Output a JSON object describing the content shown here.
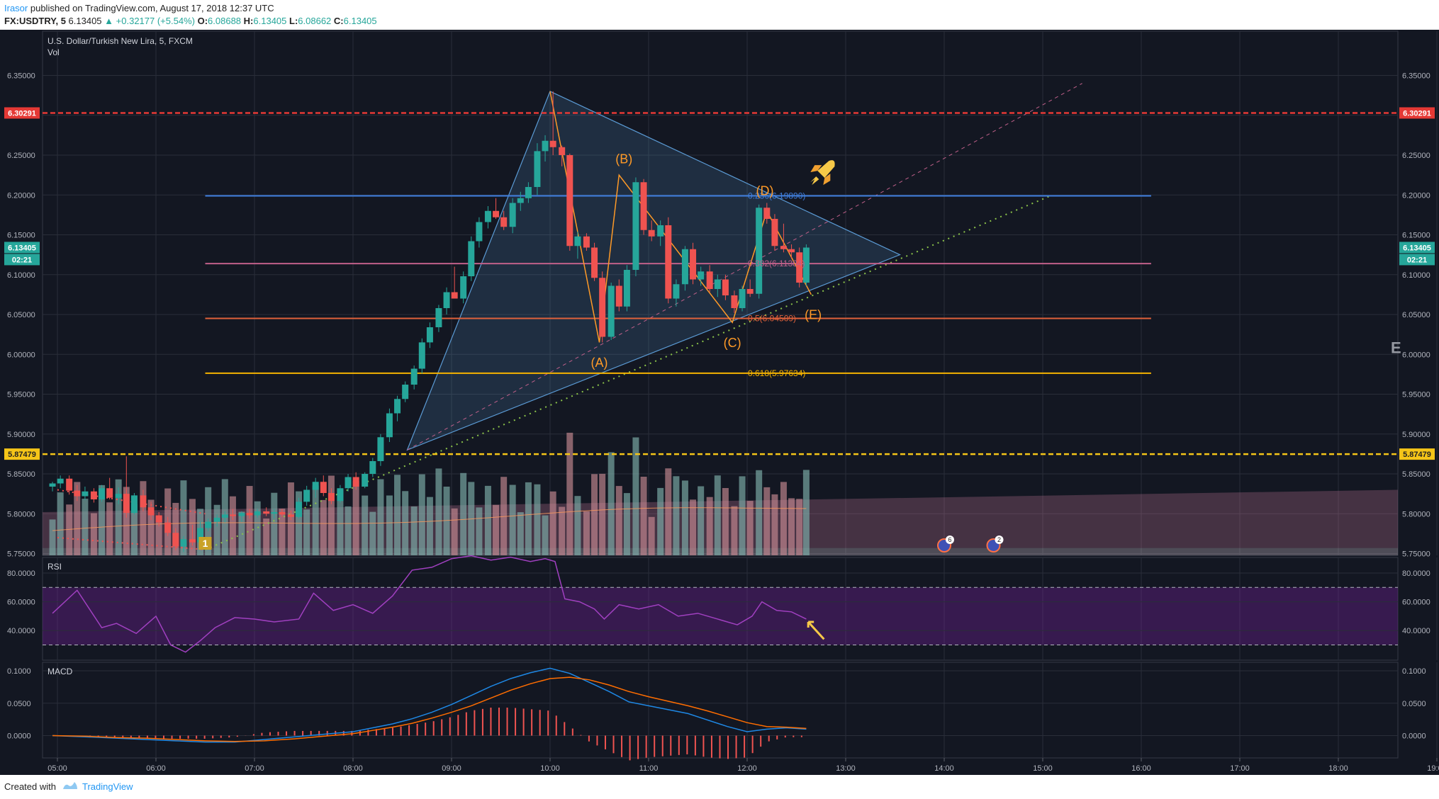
{
  "header": {
    "author": "Irasor",
    "published": "published on TradingView.com, August 17, 2018 12:37 UTC",
    "symbol_line": "FX:USDTRY, 5",
    "last": "6.13405",
    "change": "▲ +0.32177 (+5.54%)",
    "o_label": "O:",
    "o_val": "6.08688",
    "h_label": "H:",
    "h_val": "6.13405",
    "l_label": "L:",
    "l_val": "6.08662",
    "c_label": "C:",
    "c_val": "6.13405"
  },
  "footer": {
    "created_with": "Created with",
    "brand": "TradingView"
  },
  "colors": {
    "bg": "#131722",
    "up": "#26a69a",
    "down": "#ef5350",
    "grid": "#2a2e39",
    "red_line": "#e53935",
    "yellow_line": "#f5c518",
    "triangle": "#5b9bd5",
    "fib_236": "#3f7fdf",
    "fib_382": "#c0608a",
    "fib_5": "#e0613b",
    "fib_618": "#f5b300",
    "wave": "#ff9a27",
    "rsi": "#a040c0",
    "macd": "#1e88e5",
    "signal": "#ff6d00",
    "hist": "#ef5350"
  },
  "chart_data": [
    {
      "type": "candlestick",
      "title": "U.S. Dollar/Turkish New Lira, 5, FXCM",
      "subtitle": "Vol",
      "x_time_labels": [
        "05:00",
        "06:00",
        "07:00",
        "08:00",
        "09:00",
        "10:00",
        "11:00",
        "12:00",
        "13:00",
        "14:00",
        "15:00",
        "16:00",
        "17:00",
        "18:00",
        "19:00"
      ],
      "y_ticks": [
        "6.35000",
        "6.30000",
        "6.25000",
        "6.20000",
        "6.15000",
        "6.10000",
        "6.05000",
        "6.00000",
        "5.95000",
        "5.90000",
        "5.85000",
        "5.80000",
        "5.75000"
      ],
      "ylim": [
        5.72,
        6.37
      ],
      "price_tags": {
        "resistance": "6.30291",
        "last": "6.13405",
        "countdown": "02:21",
        "support": "5.87479"
      },
      "fib_labels": [
        "0.236(6.19890)",
        "0.382(6.11384)",
        "0.5(6.04509)",
        "0.618(5.97634)"
      ],
      "wave_labels": [
        "(A)",
        "(B)",
        "(C)",
        "(D)",
        "(E)"
      ],
      "wave_points": [
        [
          10.0,
          6.33
        ],
        [
          10.5,
          6.015
        ],
        [
          10.7,
          6.225
        ],
        [
          11.85,
          6.04
        ],
        [
          12.2,
          6.18
        ],
        [
          12.65,
          6.075
        ]
      ],
      "markers": {
        "event_badge": "1",
        "flag_1_count": "6",
        "flag_2_count": "2",
        "edge_label": "E"
      },
      "candles": [
        {
          "t": 4.95,
          "o": 5.834,
          "h": 5.84,
          "l": 5.828,
          "c": 5.838
        },
        {
          "t": 5.03,
          "o": 5.838,
          "h": 5.848,
          "l": 5.832,
          "c": 5.844
        },
        {
          "t": 5.12,
          "o": 5.844,
          "h": 5.848,
          "l": 5.824,
          "c": 5.829
        },
        {
          "t": 5.2,
          "o": 5.829,
          "h": 5.836,
          "l": 5.816,
          "c": 5.822
        },
        {
          "t": 5.28,
          "o": 5.822,
          "h": 5.834,
          "l": 5.817,
          "c": 5.828
        },
        {
          "t": 5.37,
          "o": 5.828,
          "h": 5.832,
          "l": 5.814,
          "c": 5.818
        },
        {
          "t": 5.45,
          "o": 5.818,
          "h": 5.836,
          "l": 5.815,
          "c": 5.832
        },
        {
          "t": 5.53,
          "o": 5.832,
          "h": 5.845,
          "l": 5.818,
          "c": 5.82
        },
        {
          "t": 5.62,
          "o": 5.82,
          "h": 5.833,
          "l": 5.812,
          "c": 5.825
        },
        {
          "t": 5.7,
          "o": 5.825,
          "h": 5.872,
          "l": 5.795,
          "c": 5.801
        },
        {
          "t": 5.78,
          "o": 5.801,
          "h": 5.826,
          "l": 5.799,
          "c": 5.823
        },
        {
          "t": 5.87,
          "o": 5.823,
          "h": 5.83,
          "l": 5.803,
          "c": 5.808
        },
        {
          "t": 5.95,
          "o": 5.808,
          "h": 5.815,
          "l": 5.792,
          "c": 5.798
        },
        {
          "t": 6.03,
          "o": 5.798,
          "h": 5.802,
          "l": 5.784,
          "c": 5.789
        },
        {
          "t": 6.12,
          "o": 5.789,
          "h": 5.796,
          "l": 5.772,
          "c": 5.776
        },
        {
          "t": 6.2,
          "o": 5.776,
          "h": 5.782,
          "l": 5.754,
          "c": 5.759
        },
        {
          "t": 6.28,
          "o": 5.759,
          "h": 5.772,
          "l": 5.752,
          "c": 5.768
        },
        {
          "t": 6.37,
          "o": 5.768,
          "h": 5.786,
          "l": 5.76,
          "c": 5.764
        },
        {
          "t": 6.45,
          "o": 5.764,
          "h": 5.79,
          "l": 5.756,
          "c": 5.782
        },
        {
          "t": 6.53,
          "o": 5.782,
          "h": 5.794,
          "l": 5.778,
          "c": 5.79
        },
        {
          "t": 6.62,
          "o": 5.79,
          "h": 5.799,
          "l": 5.784,
          "c": 5.795
        },
        {
          "t": 6.7,
          "o": 5.795,
          "h": 5.803,
          "l": 5.789,
          "c": 5.799
        },
        {
          "t": 6.78,
          "o": 5.799,
          "h": 5.806,
          "l": 5.792,
          "c": 5.797
        },
        {
          "t": 6.87,
          "o": 5.797,
          "h": 5.803,
          "l": 5.79,
          "c": 5.801
        },
        {
          "t": 6.95,
          "o": 5.801,
          "h": 5.806,
          "l": 5.794,
          "c": 5.798
        },
        {
          "t": 7.03,
          "o": 5.798,
          "h": 5.806,
          "l": 5.795,
          "c": 5.803
        },
        {
          "t": 7.12,
          "o": 5.803,
          "h": 5.808,
          "l": 5.797,
          "c": 5.8
        },
        {
          "t": 7.2,
          "o": 5.8,
          "h": 5.806,
          "l": 5.794,
          "c": 5.802
        },
        {
          "t": 7.28,
          "o": 5.802,
          "h": 5.806,
          "l": 5.796,
          "c": 5.799
        },
        {
          "t": 7.37,
          "o": 5.799,
          "h": 5.804,
          "l": 5.792,
          "c": 5.796
        },
        {
          "t": 7.45,
          "o": 5.796,
          "h": 5.82,
          "l": 5.794,
          "c": 5.815
        },
        {
          "t": 7.53,
          "o": 5.815,
          "h": 5.835,
          "l": 5.81,
          "c": 5.83
        },
        {
          "t": 7.62,
          "o": 5.83,
          "h": 5.845,
          "l": 5.82,
          "c": 5.84
        },
        {
          "t": 7.7,
          "o": 5.84,
          "h": 5.848,
          "l": 5.822,
          "c": 5.826
        },
        {
          "t": 7.78,
          "o": 5.826,
          "h": 5.832,
          "l": 5.812,
          "c": 5.816
        },
        {
          "t": 7.87,
          "o": 5.816,
          "h": 5.836,
          "l": 5.814,
          "c": 5.832
        },
        {
          "t": 7.95,
          "o": 5.832,
          "h": 5.85,
          "l": 5.828,
          "c": 5.846
        },
        {
          "t": 8.03,
          "o": 5.846,
          "h": 5.852,
          "l": 5.83,
          "c": 5.834
        },
        {
          "t": 8.12,
          "o": 5.834,
          "h": 5.852,
          "l": 5.832,
          "c": 5.85
        },
        {
          "t": 8.2,
          "o": 5.85,
          "h": 5.87,
          "l": 5.846,
          "c": 5.866
        },
        {
          "t": 8.28,
          "o": 5.866,
          "h": 5.9,
          "l": 5.86,
          "c": 5.896
        },
        {
          "t": 8.37,
          "o": 5.896,
          "h": 5.932,
          "l": 5.89,
          "c": 5.926
        },
        {
          "t": 8.45,
          "o": 5.926,
          "h": 5.948,
          "l": 5.916,
          "c": 5.944
        },
        {
          "t": 8.53,
          "o": 5.944,
          "h": 5.966,
          "l": 5.94,
          "c": 5.962
        },
        {
          "t": 8.62,
          "o": 5.962,
          "h": 5.986,
          "l": 5.956,
          "c": 5.982
        },
        {
          "t": 8.7,
          "o": 5.982,
          "h": 6.02,
          "l": 5.976,
          "c": 6.015
        },
        {
          "t": 8.78,
          "o": 6.015,
          "h": 6.04,
          "l": 6.008,
          "c": 6.034
        },
        {
          "t": 8.87,
          "o": 6.034,
          "h": 6.062,
          "l": 6.028,
          "c": 6.058
        },
        {
          "t": 8.95,
          "o": 6.058,
          "h": 6.084,
          "l": 6.05,
          "c": 6.078
        },
        {
          "t": 9.03,
          "o": 6.078,
          "h": 6.11,
          "l": 6.07,
          "c": 6.07
        },
        {
          "t": 9.12,
          "o": 6.07,
          "h": 6.104,
          "l": 6.064,
          "c": 6.098
        },
        {
          "t": 9.2,
          "o": 6.098,
          "h": 6.148,
          "l": 6.092,
          "c": 6.142
        },
        {
          "t": 9.28,
          "o": 6.142,
          "h": 6.172,
          "l": 6.134,
          "c": 6.166
        },
        {
          "t": 9.37,
          "o": 6.166,
          "h": 6.186,
          "l": 6.158,
          "c": 6.18
        },
        {
          "t": 9.45,
          "o": 6.18,
          "h": 6.196,
          "l": 6.17,
          "c": 6.172
        },
        {
          "t": 9.53,
          "o": 6.172,
          "h": 6.18,
          "l": 6.156,
          "c": 6.16
        },
        {
          "t": 9.62,
          "o": 6.16,
          "h": 6.196,
          "l": 6.152,
          "c": 6.19
        },
        {
          "t": 9.7,
          "o": 6.19,
          "h": 6.204,
          "l": 6.18,
          "c": 6.196
        },
        {
          "t": 9.78,
          "o": 6.196,
          "h": 6.216,
          "l": 6.19,
          "c": 6.21
        },
        {
          "t": 9.87,
          "o": 6.21,
          "h": 6.265,
          "l": 6.2,
          "c": 6.255
        },
        {
          "t": 9.95,
          "o": 6.255,
          "h": 6.275,
          "l": 6.242,
          "c": 6.268
        },
        {
          "t": 10.03,
          "o": 6.268,
          "h": 6.33,
          "l": 6.25,
          "c": 6.26
        },
        {
          "t": 10.12,
          "o": 6.26,
          "h": 6.262,
          "l": 6.236,
          "c": 6.25
        },
        {
          "t": 10.2,
          "o": 6.25,
          "h": 6.252,
          "l": 6.13,
          "c": 6.136
        },
        {
          "t": 10.28,
          "o": 6.136,
          "h": 6.154,
          "l": 6.12,
          "c": 6.148
        },
        {
          "t": 10.37,
          "o": 6.148,
          "h": 6.152,
          "l": 6.13,
          "c": 6.134
        },
        {
          "t": 10.45,
          "o": 6.134,
          "h": 6.14,
          "l": 6.092,
          "c": 6.096
        },
        {
          "t": 10.53,
          "o": 6.096,
          "h": 6.104,
          "l": 6.015,
          "c": 6.022
        },
        {
          "t": 10.62,
          "o": 6.022,
          "h": 6.09,
          "l": 6.018,
          "c": 6.086
        },
        {
          "t": 10.7,
          "o": 6.086,
          "h": 6.094,
          "l": 6.054,
          "c": 6.06
        },
        {
          "t": 10.78,
          "o": 6.06,
          "h": 6.112,
          "l": 6.054,
          "c": 6.106
        },
        {
          "t": 10.87,
          "o": 6.106,
          "h": 6.222,
          "l": 6.098,
          "c": 6.216
        },
        {
          "t": 10.95,
          "o": 6.216,
          "h": 6.22,
          "l": 6.15,
          "c": 6.156
        },
        {
          "t": 11.03,
          "o": 6.156,
          "h": 6.168,
          "l": 6.142,
          "c": 6.148
        },
        {
          "t": 11.12,
          "o": 6.148,
          "h": 6.168,
          "l": 6.136,
          "c": 6.162
        },
        {
          "t": 11.2,
          "o": 6.162,
          "h": 6.172,
          "l": 6.064,
          "c": 6.07
        },
        {
          "t": 11.28,
          "o": 6.07,
          "h": 6.094,
          "l": 6.06,
          "c": 6.088
        },
        {
          "t": 11.37,
          "o": 6.088,
          "h": 6.136,
          "l": 6.08,
          "c": 6.132
        },
        {
          "t": 11.45,
          "o": 6.132,
          "h": 6.14,
          "l": 6.088,
          "c": 6.094
        },
        {
          "t": 11.53,
          "o": 6.094,
          "h": 6.11,
          "l": 6.086,
          "c": 6.104
        },
        {
          "t": 11.62,
          "o": 6.104,
          "h": 6.112,
          "l": 6.078,
          "c": 6.082
        },
        {
          "t": 11.7,
          "o": 6.082,
          "h": 6.1,
          "l": 6.072,
          "c": 6.094
        },
        {
          "t": 11.78,
          "o": 6.094,
          "h": 6.1,
          "l": 6.068,
          "c": 6.074
        },
        {
          "t": 11.87,
          "o": 6.074,
          "h": 6.08,
          "l": 6.052,
          "c": 6.058
        },
        {
          "t": 11.95,
          "o": 6.058,
          "h": 6.086,
          "l": 6.054,
          "c": 6.082
        },
        {
          "t": 12.03,
          "o": 6.082,
          "h": 6.094,
          "l": 6.072,
          "c": 6.076
        },
        {
          "t": 12.12,
          "o": 6.076,
          "h": 6.188,
          "l": 6.07,
          "c": 6.184
        },
        {
          "t": 12.2,
          "o": 6.184,
          "h": 6.19,
          "l": 6.164,
          "c": 6.17
        },
        {
          "t": 12.28,
          "o": 6.17,
          "h": 6.176,
          "l": 6.13,
          "c": 6.136
        },
        {
          "t": 12.37,
          "o": 6.136,
          "h": 6.164,
          "l": 6.128,
          "c": 6.132
        },
        {
          "t": 12.45,
          "o": 6.132,
          "h": 6.138,
          "l": 6.12,
          "c": 6.128
        },
        {
          "t": 12.53,
          "o": 6.128,
          "h": 6.134,
          "l": 6.084,
          "c": 6.09
        },
        {
          "t": 12.6,
          "o": 6.09,
          "h": 6.138,
          "l": 6.086,
          "c": 6.134
        }
      ]
    },
    {
      "type": "line",
      "title": "RSI",
      "y_ticks": [
        "80.0000",
        "60.0000",
        "40.0000"
      ],
      "ylim": [
        12,
        100
      ],
      "bands": [
        70,
        30
      ],
      "x": [
        4.95,
        5.2,
        5.45,
        5.6,
        5.8,
        6.0,
        6.15,
        6.3,
        6.45,
        6.6,
        6.8,
        7.0,
        7.2,
        7.45,
        7.6,
        7.8,
        8.0,
        8.2,
        8.4,
        8.6,
        8.8,
        9.0,
        9.2,
        9.4,
        9.6,
        9.8,
        9.95,
        10.05,
        10.15,
        10.3,
        10.45,
        10.55,
        10.7,
        10.9,
        11.1,
        11.3,
        11.5,
        11.7,
        11.9,
        12.05,
        12.15,
        12.3,
        12.45,
        12.6
      ],
      "values": [
        52,
        68,
        42,
        45,
        38,
        50,
        30,
        25,
        33,
        42,
        49,
        48,
        46,
        48,
        66,
        54,
        58,
        52,
        64,
        82,
        84,
        90,
        92,
        89,
        91,
        88,
        90,
        88,
        62,
        60,
        55,
        48,
        58,
        55,
        58,
        50,
        52,
        48,
        44,
        50,
        60,
        54,
        53,
        48
      ]
    },
    {
      "type": "line",
      "title": "MACD",
      "y_ticks": [
        "0.1000",
        "0.0500",
        "0.0000"
      ],
      "ylim": [
        -0.022,
        0.108
      ],
      "x": [
        4.95,
        5.3,
        5.6,
        5.9,
        6.2,
        6.5,
        6.8,
        7.1,
        7.4,
        7.7,
        8.0,
        8.2,
        8.4,
        8.6,
        8.8,
        9.0,
        9.2,
        9.4,
        9.6,
        9.8,
        10.0,
        10.2,
        10.4,
        10.6,
        10.8,
        11.0,
        11.2,
        11.4,
        11.6,
        11.8,
        12.0,
        12.2,
        12.4,
        12.6
      ],
      "series": [
        {
          "values": [
            0,
            -0.002,
            -0.004,
            -0.006,
            -0.008,
            -0.01,
            -0.01,
            -0.006,
            -0.002,
            0.002,
            0.006,
            0.012,
            0.018,
            0.026,
            0.036,
            0.048,
            0.062,
            0.076,
            0.088,
            0.097,
            0.104,
            0.096,
            0.082,
            0.068,
            0.052,
            0.046,
            0.04,
            0.034,
            0.024,
            0.014,
            0.006,
            0.01,
            0.012,
            0.01
          ]
        },
        {
          "values": [
            0,
            -0.001,
            -0.003,
            -0.004,
            -0.006,
            -0.008,
            -0.009,
            -0.008,
            -0.005,
            -0.001,
            0.003,
            0.008,
            0.013,
            0.019,
            0.027,
            0.036,
            0.046,
            0.058,
            0.07,
            0.08,
            0.088,
            0.09,
            0.086,
            0.078,
            0.068,
            0.06,
            0.053,
            0.046,
            0.038,
            0.029,
            0.02,
            0.014,
            0.013,
            0.011
          ]
        }
      ]
    }
  ]
}
